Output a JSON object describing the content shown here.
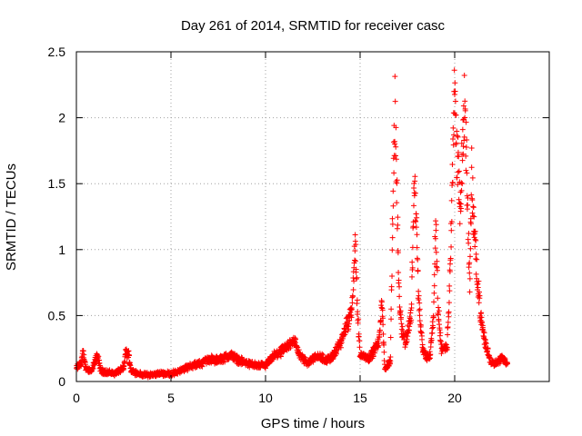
{
  "chart_data": {
    "type": "scatter",
    "title": "Day 261 of 2014, SRMTID for receiver casc",
    "xlabel": "GPS time / hours",
    "ylabel": "SRMTID / TECUs",
    "xlim": [
      0,
      25
    ],
    "ylim": [
      0,
      2.5
    ],
    "xticks": [
      0,
      5,
      10,
      15,
      20
    ],
    "yticks": [
      0,
      0.5,
      1,
      1.5,
      2,
      2.5
    ],
    "xtick_labels": [
      "0",
      "5",
      "10",
      "15",
      "20"
    ],
    "ytick_labels": [
      "0",
      "0.5",
      "1",
      "1.5",
      "2",
      "2.5"
    ],
    "grid": true,
    "marker": "+",
    "series_color": "#ff0000",
    "series": [
      {
        "name": "SRMTID",
        "envelope": [
          [
            0.0,
            0.1
          ],
          [
            0.25,
            0.14
          ],
          [
            0.35,
            0.22
          ],
          [
            0.5,
            0.1
          ],
          [
            0.8,
            0.08
          ],
          [
            1.0,
            0.16
          ],
          [
            1.1,
            0.2
          ],
          [
            1.3,
            0.08
          ],
          [
            1.6,
            0.07
          ],
          [
            2.0,
            0.06
          ],
          [
            2.5,
            0.1
          ],
          [
            2.6,
            0.22
          ],
          [
            2.75,
            0.21
          ],
          [
            2.9,
            0.08
          ],
          [
            3.5,
            0.05
          ],
          [
            4.0,
            0.05
          ],
          [
            4.5,
            0.06
          ],
          [
            5.0,
            0.06
          ],
          [
            5.5,
            0.08
          ],
          [
            6.0,
            0.12
          ],
          [
            6.5,
            0.13
          ],
          [
            7.0,
            0.17
          ],
          [
            7.5,
            0.16
          ],
          [
            7.8,
            0.18
          ],
          [
            8.2,
            0.2
          ],
          [
            8.6,
            0.16
          ],
          [
            9.0,
            0.14
          ],
          [
            9.5,
            0.12
          ],
          [
            10.0,
            0.12
          ],
          [
            10.5,
            0.2
          ],
          [
            11.0,
            0.24
          ],
          [
            11.5,
            0.32
          ],
          [
            11.8,
            0.2
          ],
          [
            12.2,
            0.14
          ],
          [
            12.7,
            0.2
          ],
          [
            13.2,
            0.16
          ],
          [
            13.6,
            0.2
          ],
          [
            14.0,
            0.3
          ],
          [
            14.2,
            0.4
          ],
          [
            14.4,
            0.45
          ],
          [
            14.6,
            0.6
          ],
          [
            14.75,
            1.1
          ],
          [
            14.85,
            0.55
          ],
          [
            15.0,
            0.2
          ],
          [
            15.5,
            0.18
          ],
          [
            16.0,
            0.3
          ],
          [
            16.15,
            0.62
          ],
          [
            16.3,
            0.1
          ],
          [
            16.6,
            0.15
          ],
          [
            16.75,
            1.5
          ],
          [
            16.85,
            2.1
          ],
          [
            16.95,
            1.4
          ],
          [
            17.05,
            0.7
          ],
          [
            17.2,
            0.4
          ],
          [
            17.4,
            0.3
          ],
          [
            17.7,
            0.5
          ],
          [
            17.85,
            1.5
          ],
          [
            17.95,
            1.3
          ],
          [
            18.1,
            0.6
          ],
          [
            18.3,
            0.25
          ],
          [
            18.5,
            0.18
          ],
          [
            18.7,
            0.2
          ],
          [
            18.9,
            0.55
          ],
          [
            19.0,
            1.3
          ],
          [
            19.1,
            0.6
          ],
          [
            19.3,
            0.25
          ],
          [
            19.6,
            0.25
          ],
          [
            19.75,
            0.8
          ],
          [
            19.9,
            1.7
          ],
          [
            20.0,
            2.35
          ],
          [
            20.1,
            1.75
          ],
          [
            20.2,
            1.6
          ],
          [
            20.3,
            1.3
          ],
          [
            20.5,
            2.1
          ],
          [
            20.6,
            1.8
          ],
          [
            20.8,
            0.7
          ],
          [
            20.9,
            1.6
          ],
          [
            21.0,
            1.2
          ],
          [
            21.2,
            0.8
          ],
          [
            21.4,
            0.45
          ],
          [
            21.6,
            0.3
          ],
          [
            21.9,
            0.15
          ],
          [
            22.2,
            0.14
          ],
          [
            22.5,
            0.18
          ],
          [
            22.8,
            0.14
          ]
        ]
      }
    ]
  }
}
